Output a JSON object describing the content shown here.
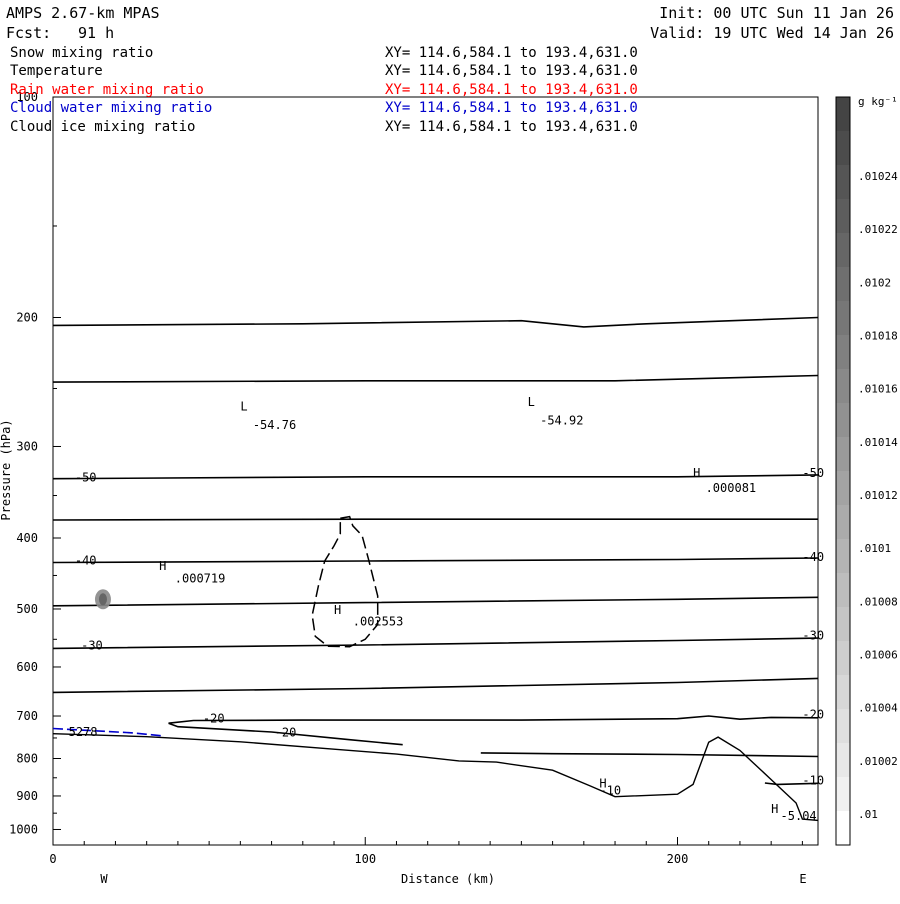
{
  "header": {
    "model": "AMPS 2.67-km MPAS",
    "fcst_label": "Fcst:",
    "fcst_value": "91 h",
    "init": "Init: 00 UTC Sun 11 Jan 26",
    "valid": "Valid: 19 UTC Wed 14 Jan 26"
  },
  "legend": [
    {
      "name": "Snow mixing ratio",
      "xy": "XY= 114.6,584.1 to 193.4,631.0",
      "color": "#000000"
    },
    {
      "name": "Temperature",
      "xy": "XY= 114.6,584.1 to 193.4,631.0",
      "color": "#000000"
    },
    {
      "name": "Rain water mixing ratio",
      "xy": "XY= 114.6,584.1 to 193.4,631.0",
      "color": "#ff0000"
    },
    {
      "name": "Cloud water mixing ratio",
      "xy": "XY= 114.6,584.1 to 193.4,631.0",
      "color": "#0000cc"
    },
    {
      "name": "Cloud ice mixing ratio",
      "xy": "XY= 114.6,584.1 to 193.4,631.0",
      "color": "#000000"
    }
  ],
  "chart_data": {
    "type": "cross-section contour",
    "xlabel": "Distance (km)",
    "ylabel": "Pressure (hPa)",
    "xlim": [
      0,
      245
    ],
    "ylim_hpa": [
      1050,
      100
    ],
    "y_scale": "log",
    "x_ticks": [
      {
        "v": 0,
        "label": "0"
      },
      {
        "v": 100,
        "label": "100"
      },
      {
        "v": 200,
        "label": "200"
      }
    ],
    "y_ticks": [
      {
        "v": 100,
        "label": "100"
      },
      {
        "v": 200,
        "label": "200"
      },
      {
        "v": 300,
        "label": "300"
      },
      {
        "v": 400,
        "label": "400"
      },
      {
        "v": 500,
        "label": "500"
      },
      {
        "v": 600,
        "label": "600"
      },
      {
        "v": 700,
        "label": "700"
      },
      {
        "v": 800,
        "label": "800"
      },
      {
        "v": 900,
        "label": "900"
      },
      {
        "v": 1000,
        "label": "1000"
      }
    ],
    "side_labels": {
      "left": "W",
      "right": "E"
    },
    "temperature_contours": [
      {
        "level": -60,
        "points": [
          [
            0,
            205
          ],
          [
            80,
            204
          ],
          [
            150,
            202
          ],
          [
            170,
            206
          ],
          [
            190,
            204
          ],
          [
            245,
            200
          ]
        ]
      },
      {
        "level": -55,
        "points": [
          [
            0,
            245
          ],
          [
            100,
            244
          ],
          [
            180,
            244
          ],
          [
            245,
            240
          ]
        ]
      },
      {
        "level": -50,
        "points": [
          [
            0,
            332
          ],
          [
            100,
            330
          ],
          [
            200,
            330
          ],
          [
            245,
            328
          ]
        ]
      },
      {
        "level": -45,
        "points": [
          [
            0,
            378
          ],
          [
            100,
            377
          ],
          [
            200,
            377
          ],
          [
            245,
            377
          ]
        ]
      },
      {
        "level": -40,
        "points": [
          [
            0,
            432
          ],
          [
            100,
            430
          ],
          [
            200,
            428
          ],
          [
            245,
            426
          ]
        ]
      },
      {
        "level": -35,
        "points": [
          [
            0,
            495
          ],
          [
            100,
            490
          ],
          [
            200,
            485
          ],
          [
            245,
            482
          ]
        ]
      },
      {
        "level": -30,
        "points": [
          [
            0,
            566
          ],
          [
            100,
            560
          ],
          [
            200,
            552
          ],
          [
            245,
            548
          ]
        ]
      },
      {
        "level": -25,
        "points": [
          [
            0,
            650
          ],
          [
            100,
            642
          ],
          [
            200,
            630
          ],
          [
            245,
            622
          ]
        ]
      },
      {
        "level": -20,
        "points": [
          [
            37,
            716
          ],
          [
            45,
            710
          ],
          [
            80,
            709
          ],
          [
            150,
            709
          ],
          [
            200,
            706
          ],
          [
            210,
            700
          ],
          [
            220,
            707
          ],
          [
            230,
            703
          ],
          [
            245,
            704
          ]
        ]
      },
      {
        "level": -20,
        "points": [
          [
            37,
            716
          ],
          [
            40,
            724
          ],
          [
            70,
            736
          ],
          [
            95,
            754
          ],
          [
            112,
            766
          ]
        ]
      },
      {
        "level": -15,
        "points": [
          [
            137,
            786
          ],
          [
            160,
            788
          ],
          [
            200,
            790
          ],
          [
            245,
            795
          ]
        ]
      },
      {
        "level": -10,
        "points": [
          [
            228,
            864
          ],
          [
            232,
            868
          ],
          [
            245,
            865
          ]
        ]
      }
    ],
    "terrain": [
      [
        0,
        740
      ],
      [
        30,
        747
      ],
      [
        60,
        759
      ],
      [
        90,
        777
      ],
      [
        110,
        789
      ],
      [
        130,
        806
      ],
      [
        142,
        809
      ],
      [
        160,
        830
      ],
      [
        172,
        872
      ],
      [
        180,
        902
      ],
      [
        200,
        895
      ],
      [
        205,
        868
      ],
      [
        210,
        760
      ],
      [
        213,
        748
      ],
      [
        220,
        780
      ],
      [
        230,
        855
      ],
      [
        238,
        920
      ],
      [
        240,
        968
      ],
      [
        245,
        972
      ]
    ],
    "cloud_ice_contour": {
      "level": 0.001,
      "points": [
        [
          92,
          376
        ],
        [
          95,
          374
        ],
        [
          96,
          385
        ],
        [
          99,
          397
        ],
        [
          101,
          427
        ],
        [
          104,
          480
        ],
        [
          104,
          525
        ],
        [
          100,
          550
        ],
        [
          95,
          563
        ],
        [
          88,
          562
        ],
        [
          84,
          545
        ],
        [
          83,
          510
        ],
        [
          85,
          465
        ],
        [
          87,
          430
        ],
        [
          90,
          410
        ],
        [
          92,
          395
        ],
        [
          92,
          376
        ]
      ]
    },
    "cloud_water_contour": [
      [
        0,
        728
      ],
      [
        25,
        738
      ],
      [
        35,
        745
      ]
    ],
    "snow_patch": {
      "x": 16,
      "p": 485
    },
    "annotations": [
      {
        "text": "L",
        "x": 60,
        "p": 268
      },
      {
        "text": "-54.76",
        "x": 64,
        "p": 284
      },
      {
        "text": "L",
        "x": 152,
        "p": 264
      },
      {
        "text": "-54.92",
        "x": 156,
        "p": 280
      },
      {
        "text": "H",
        "x": 205,
        "p": 330
      },
      {
        "text": ".000081",
        "x": 209,
        "p": 346
      },
      {
        "text": "H",
        "x": 34,
        "p": 442
      },
      {
        "text": ".000719",
        "x": 39,
        "p": 460
      },
      {
        "text": "H",
        "x": 90,
        "p": 508
      },
      {
        "text": ".002553",
        "x": 96,
        "p": 527
      },
      {
        "text": "H",
        "x": 175,
        "p": 877
      },
      {
        "text": "-10",
        "x": 175,
        "p": 896
      },
      {
        "text": "H",
        "x": 230,
        "p": 950
      },
      {
        "text": "-5.04",
        "x": 233,
        "p": 970
      },
      {
        "text": "-50",
        "x": 7,
        "p": 335
      },
      {
        "text": "-50",
        "x": 240,
        "p": 330
      },
      {
        "text": "-40",
        "x": 7,
        "p": 435
      },
      {
        "text": "-40",
        "x": 240,
        "p": 430
      },
      {
        "text": "-30",
        "x": 9,
        "p": 568
      },
      {
        "text": "-30",
        "x": 240,
        "p": 550
      },
      {
        "text": "-20",
        "x": 48,
        "p": 714
      },
      {
        "text": "-20",
        "x": 71,
        "p": 747
      },
      {
        "text": "-20",
        "x": 240,
        "p": 706
      },
      {
        "text": "-10",
        "x": 240,
        "p": 868
      },
      {
        "text": "5278",
        "x": 5,
        "p": 745
      }
    ]
  },
  "colorbar": {
    "unit": "g kg⁻¹",
    "labels": [
      ".01024",
      ".01022",
      ".0102",
      ".01018",
      ".01016",
      ".01014",
      ".01012",
      ".0101",
      ".01008",
      ".01006",
      ".01004",
      ".01002",
      ".01"
    ],
    "colors": [
      "#444444",
      "#4c4c4c",
      "#555555",
      "#5d5d5d",
      "#666666",
      "#6f6f6f",
      "#777777",
      "#808080",
      "#898989",
      "#919191",
      "#9a9a9a",
      "#a3a3a3",
      "#ababab",
      "#b4b4b4",
      "#bdbdbd",
      "#c5c5c5",
      "#cecece",
      "#d7d7d7",
      "#dfdfdf",
      "#e8e8e8",
      "#f1f1f1",
      "#ffffff"
    ]
  }
}
